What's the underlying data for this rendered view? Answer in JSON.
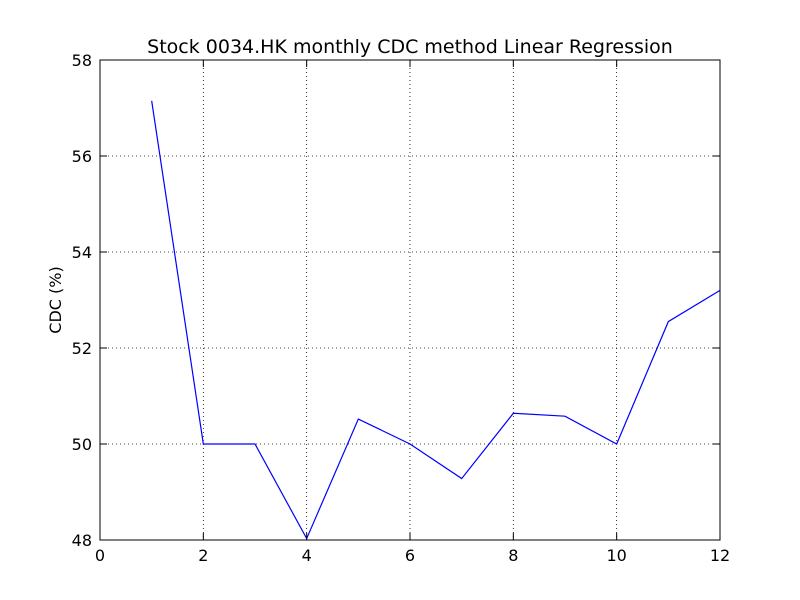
{
  "chart_data": {
    "type": "line",
    "title": "Stock 0034.HK monthly CDC method Linear Regression",
    "xlabel": "",
    "ylabel": "CDC (%)",
    "xlim": [
      0,
      12
    ],
    "ylim": [
      48,
      58
    ],
    "xticks": [
      "0",
      "2",
      "4",
      "6",
      "8",
      "10",
      "12"
    ],
    "yticks": [
      "48",
      "50",
      "52",
      "54",
      "56",
      "58"
    ],
    "grid": true,
    "series": [
      {
        "color": "#0000ff",
        "x": [
          1,
          2,
          3,
          4,
          5,
          6,
          7,
          8,
          9,
          10,
          11,
          12
        ],
        "y": [
          57.15,
          50.0,
          50.0,
          48.03,
          50.52,
          50.0,
          49.28,
          50.64,
          50.58,
          50.0,
          52.55,
          53.2
        ]
      }
    ]
  }
}
